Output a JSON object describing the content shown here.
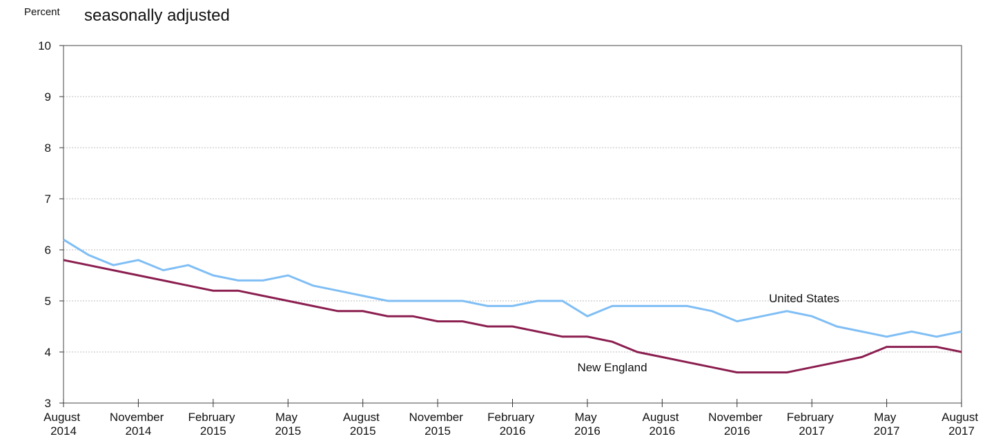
{
  "chart_data": {
    "type": "line",
    "subtitle": "seasonally adjusted",
    "y_label": "Percent",
    "categories": [
      "August 2014",
      null,
      null,
      "November 2014",
      null,
      null,
      "February 2015",
      null,
      null,
      "May 2015",
      null,
      null,
      "August 2015",
      null,
      null,
      "November 2015",
      null,
      null,
      "February 2016",
      null,
      null,
      "May 2016",
      null,
      null,
      "August 2016",
      null,
      null,
      "November 2016",
      null,
      null,
      "February 2017",
      null,
      null,
      "May 2017",
      null,
      null,
      "August 2017"
    ],
    "series": [
      {
        "name": "United States",
        "color": "#7fbef5",
        "values": [
          6.2,
          5.9,
          5.7,
          5.8,
          5.6,
          5.7,
          5.5,
          5.4,
          5.4,
          5.5,
          5.3,
          5.2,
          5.1,
          5.0,
          5.0,
          5.0,
          5.0,
          4.9,
          4.9,
          5.0,
          5.0,
          4.7,
          4.9,
          4.9,
          4.9,
          4.9,
          4.8,
          4.6,
          4.7,
          4.8,
          4.7,
          4.5,
          4.4,
          4.3,
          4.4,
          4.3,
          4.4
        ]
      },
      {
        "name": "New England",
        "color": "#8b1e4f",
        "values": [
          5.8,
          5.7,
          5.6,
          5.5,
          5.4,
          5.3,
          5.2,
          5.2,
          5.1,
          5.0,
          4.9,
          4.8,
          4.8,
          4.7,
          4.7,
          4.6,
          4.6,
          4.5,
          4.5,
          4.4,
          4.3,
          4.3,
          4.2,
          4.0,
          3.9,
          3.8,
          3.7,
          3.6,
          3.6,
          3.6,
          3.7,
          3.8,
          3.9,
          4.1,
          4.1,
          4.1,
          4.0
        ]
      }
    ],
    "ylim": [
      3,
      10
    ],
    "yticks": [
      3,
      4,
      5,
      6,
      7,
      8,
      9,
      10
    ],
    "grid": true
  }
}
